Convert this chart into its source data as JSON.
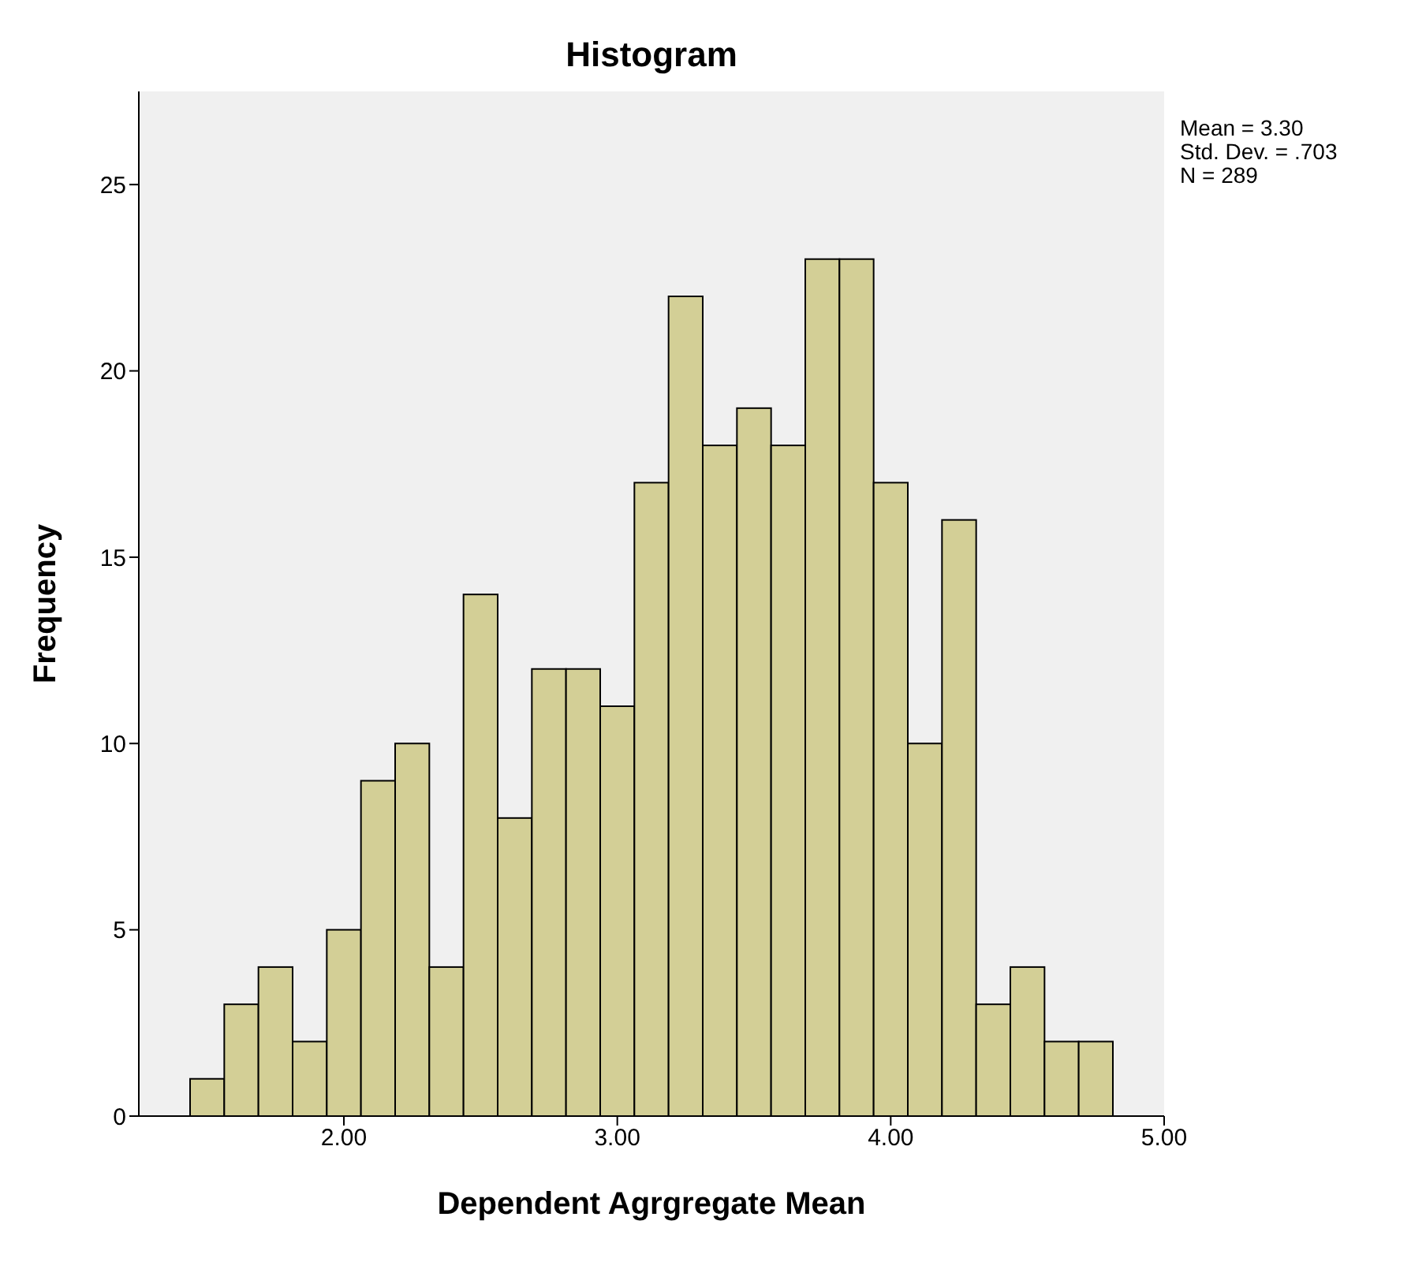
{
  "chart_data": {
    "type": "histogram",
    "title": "Histogram",
    "xlabel": "Dependent Agrgregate Mean",
    "ylabel": "Frequency",
    "bins": [
      1.4375,
      1.5625,
      1.6875,
      1.8125,
      1.9375,
      2.0625,
      2.1875,
      2.3125,
      2.4375,
      2.5625,
      2.6875,
      2.8125,
      2.9375,
      3.0625,
      3.1875,
      3.3125,
      3.4375,
      3.5625,
      3.6875,
      3.8125,
      3.9375,
      4.0625,
      4.1875,
      4.3125,
      4.4375,
      4.5625,
      4.6875,
      4.8125
    ],
    "values": [
      1,
      3,
      4,
      2,
      5,
      9,
      10,
      4,
      14,
      8,
      12,
      12,
      11,
      17,
      22,
      18,
      19,
      18,
      23,
      23,
      17,
      10,
      16,
      3,
      4,
      2,
      2
    ],
    "color": "#d3cf96",
    "xlim": [
      1.25,
      5.0
    ],
    "xticks": [
      {
        "value": 2,
        "label": "2.00"
      },
      {
        "value": 3,
        "label": "3.00"
      },
      {
        "value": 4,
        "label": "4.00"
      },
      {
        "value": 5,
        "label": "5.00"
      }
    ],
    "ylim": [
      0,
      27.5
    ],
    "yticks": [
      0,
      5,
      10,
      15,
      20,
      25
    ],
    "annotations": [
      "Mean = 3.30",
      "Std. Dev. = .703",
      "N = 289"
    ]
  }
}
